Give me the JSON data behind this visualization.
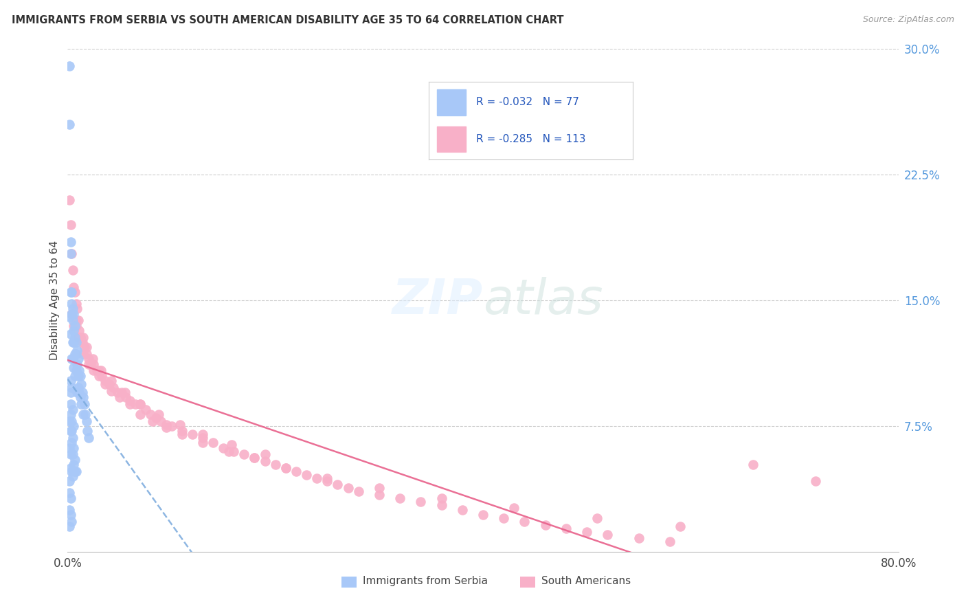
{
  "title": "IMMIGRANTS FROM SERBIA VS SOUTH AMERICAN DISABILITY AGE 35 TO 64 CORRELATION CHART",
  "source": "Source: ZipAtlas.com",
  "ylabel": "Disability Age 35 to 64",
  "xlim": [
    0.0,
    0.8
  ],
  "ylim": [
    0.0,
    0.3
  ],
  "yticks_right": [
    0.075,
    0.15,
    0.225,
    0.3
  ],
  "ytick_labels_right": [
    "7.5%",
    "15.0%",
    "22.5%",
    "30.0%"
  ],
  "blue_color": "#a8c8f8",
  "pink_color": "#f8b0c8",
  "trend_blue_color": "#7aaadd",
  "trend_pink_color": "#e8608a",
  "background_color": "#ffffff",
  "serbia_x": [
    0.002,
    0.002,
    0.002,
    0.003,
    0.003,
    0.003,
    0.003,
    0.004,
    0.004,
    0.004,
    0.004,
    0.005,
    0.005,
    0.005,
    0.005,
    0.006,
    0.006,
    0.006,
    0.006,
    0.007,
    0.007,
    0.007,
    0.007,
    0.008,
    0.008,
    0.008,
    0.009,
    0.009,
    0.009,
    0.01,
    0.01,
    0.01,
    0.011,
    0.011,
    0.012,
    0.012,
    0.013,
    0.013,
    0.014,
    0.015,
    0.015,
    0.016,
    0.017,
    0.018,
    0.019,
    0.02,
    0.003,
    0.004,
    0.005,
    0.006,
    0.002,
    0.002,
    0.003,
    0.003,
    0.004,
    0.004,
    0.005,
    0.005,
    0.006,
    0.007,
    0.002,
    0.002,
    0.002,
    0.003,
    0.003,
    0.004,
    0.003,
    0.003,
    0.003,
    0.004,
    0.004,
    0.005,
    0.006,
    0.007,
    0.008,
    0.002,
    0.003
  ],
  "serbia_y": [
    0.29,
    0.255,
    0.14,
    0.185,
    0.178,
    0.155,
    0.13,
    0.155,
    0.148,
    0.142,
    0.115,
    0.145,
    0.138,
    0.125,
    0.115,
    0.142,
    0.132,
    0.125,
    0.11,
    0.135,
    0.128,
    0.118,
    0.105,
    0.125,
    0.118,
    0.108,
    0.12,
    0.112,
    0.095,
    0.115,
    0.105,
    0.098,
    0.108,
    0.095,
    0.105,
    0.092,
    0.1,
    0.088,
    0.095,
    0.092,
    0.082,
    0.088,
    0.082,
    0.078,
    0.072,
    0.068,
    0.102,
    0.098,
    0.085,
    0.075,
    0.078,
    0.062,
    0.072,
    0.058,
    0.065,
    0.048,
    0.058,
    0.045,
    0.052,
    0.048,
    0.042,
    0.035,
    0.025,
    0.032,
    0.022,
    0.018,
    0.095,
    0.088,
    0.082,
    0.078,
    0.072,
    0.068,
    0.062,
    0.055,
    0.048,
    0.015,
    0.05
  ],
  "sa_x": [
    0.002,
    0.003,
    0.004,
    0.005,
    0.006,
    0.007,
    0.008,
    0.008,
    0.009,
    0.01,
    0.011,
    0.012,
    0.014,
    0.015,
    0.016,
    0.018,
    0.02,
    0.022,
    0.025,
    0.028,
    0.03,
    0.033,
    0.036,
    0.04,
    0.044,
    0.048,
    0.052,
    0.056,
    0.06,
    0.065,
    0.07,
    0.075,
    0.08,
    0.085,
    0.09,
    0.095,
    0.1,
    0.11,
    0.12,
    0.13,
    0.14,
    0.15,
    0.16,
    0.17,
    0.18,
    0.19,
    0.2,
    0.21,
    0.22,
    0.23,
    0.24,
    0.25,
    0.26,
    0.27,
    0.28,
    0.3,
    0.32,
    0.34,
    0.36,
    0.38,
    0.4,
    0.42,
    0.44,
    0.46,
    0.48,
    0.5,
    0.52,
    0.55,
    0.58,
    0.006,
    0.01,
    0.015,
    0.02,
    0.025,
    0.03,
    0.036,
    0.042,
    0.05,
    0.06,
    0.07,
    0.082,
    0.095,
    0.11,
    0.13,
    0.155,
    0.18,
    0.21,
    0.25,
    0.3,
    0.36,
    0.43,
    0.51,
    0.59,
    0.66,
    0.72,
    0.004,
    0.008,
    0.012,
    0.018,
    0.024,
    0.032,
    0.042,
    0.055,
    0.07,
    0.088,
    0.108,
    0.13,
    0.158,
    0.19
  ],
  "sa_y": [
    0.21,
    0.195,
    0.178,
    0.168,
    0.158,
    0.155,
    0.148,
    0.138,
    0.145,
    0.138,
    0.132,
    0.128,
    0.125,
    0.128,
    0.122,
    0.118,
    0.115,
    0.112,
    0.112,
    0.108,
    0.108,
    0.105,
    0.102,
    0.1,
    0.098,
    0.095,
    0.095,
    0.092,
    0.09,
    0.088,
    0.088,
    0.085,
    0.082,
    0.08,
    0.078,
    0.076,
    0.075,
    0.072,
    0.07,
    0.068,
    0.065,
    0.062,
    0.06,
    0.058,
    0.056,
    0.054,
    0.052,
    0.05,
    0.048,
    0.046,
    0.044,
    0.042,
    0.04,
    0.038,
    0.036,
    0.034,
    0.032,
    0.03,
    0.028,
    0.025,
    0.022,
    0.02,
    0.018,
    0.016,
    0.014,
    0.012,
    0.01,
    0.008,
    0.006,
    0.135,
    0.128,
    0.118,
    0.112,
    0.108,
    0.105,
    0.1,
    0.096,
    0.092,
    0.088,
    0.082,
    0.078,
    0.074,
    0.07,
    0.065,
    0.06,
    0.056,
    0.05,
    0.044,
    0.038,
    0.032,
    0.026,
    0.02,
    0.015,
    0.052,
    0.042,
    0.142,
    0.135,
    0.128,
    0.122,
    0.115,
    0.108,
    0.102,
    0.095,
    0.088,
    0.082,
    0.076,
    0.07,
    0.064,
    0.058
  ]
}
